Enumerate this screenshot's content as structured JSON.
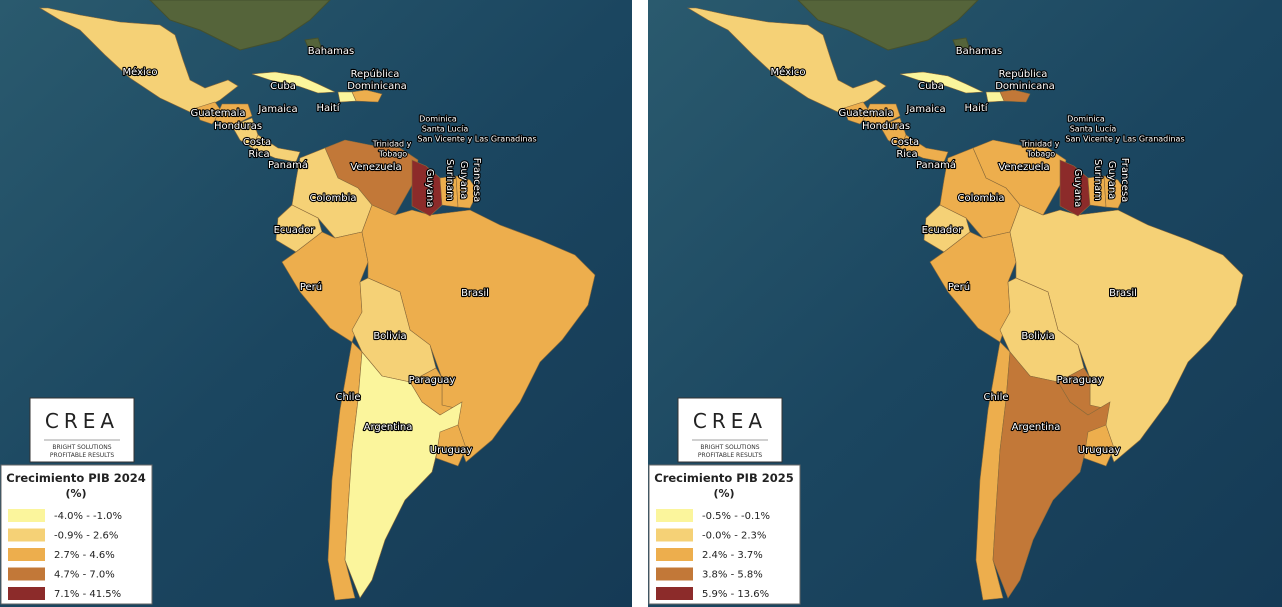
{
  "maps": [
    {
      "legend": {
        "title": "Crecimiento PIB 2024",
        "unit": "(%)",
        "items": [
          {
            "label": "-4.0% - -1.0%",
            "color": "#fbf59c"
          },
          {
            "label": "-0.9% - 2.6%",
            "color": "#f5d176"
          },
          {
            "label": "2.7% - 4.6%",
            "color": "#edae4d"
          },
          {
            "label": "4.7% - 7.0%",
            "color": "#c27838"
          },
          {
            "label": "7.1% - 41.5%",
            "color": "#8c2b2a"
          }
        ]
      },
      "labels": [
        {
          "lines": [
            "México"
          ],
          "fill": "#f5d176"
        },
        {
          "lines": [
            "Bahamas"
          ]
        },
        {
          "lines": [
            "Cuba"
          ],
          "fill": "#fbf59c"
        },
        {
          "lines": [
            "República",
            "Dominicana"
          ],
          "fill": "#edae4d"
        },
        {
          "lines": [
            "Jamaica"
          ]
        },
        {
          "lines": [
            "Haití"
          ],
          "fill": "#fbf59c"
        },
        {
          "lines": [
            "Guatemala"
          ],
          "fill": "#edae4d"
        },
        {
          "lines": [
            "Honduras"
          ],
          "fill": "#edae4d"
        },
        {
          "lines": [
            "Costa",
            "Rica"
          ],
          "fill": "#f5d176"
        },
        {
          "lines": [
            "Panamá"
          ],
          "fill": "#f5d176"
        },
        {
          "lines": [
            "Dominica",
            "Santa Lucía",
            "San Vicente y Las Granadinas"
          ]
        },
        {
          "lines": [
            "Trinidad y",
            "Tobago"
          ]
        },
        {
          "lines": [
            "Venezuela"
          ],
          "fill": "#c27838"
        },
        {
          "lines": [
            "Colombia"
          ],
          "fill": "#f5d176"
        },
        {
          "lines": [
            "Ecuador"
          ],
          "fill": "#f5d176"
        },
        {
          "lines": [
            "Perú"
          ],
          "fill": "#edae4d"
        },
        {
          "lines": [
            "Brasil"
          ],
          "fill": "#edae4d"
        },
        {
          "lines": [
            "Bolivia"
          ],
          "fill": "#f5d176"
        },
        {
          "lines": [
            "Paraguay"
          ],
          "fill": "#edae4d"
        },
        {
          "lines": [
            "Chile"
          ],
          "fill": "#edae4d"
        },
        {
          "lines": [
            "Argentina"
          ],
          "fill": "#fbf59c"
        },
        {
          "lines": [
            "Uruguay"
          ],
          "fill": "#edae4d"
        },
        {
          "lines": [
            "Guyana"
          ],
          "fill": "#8c2b2a"
        },
        {
          "lines": [
            "Surinam"
          ],
          "fill": "#edae4d"
        },
        {
          "lines": [
            "Guyana",
            "Francesa"
          ],
          "fill": "#edae4d"
        }
      ]
    },
    {
      "legend": {
        "title": "Crecimiento PIB 2025",
        "unit": "(%)",
        "items": [
          {
            "label": "-0.5% - -0.1%",
            "color": "#fbf59c"
          },
          {
            "label": "-0.0% - 2.3%",
            "color": "#f5d176"
          },
          {
            "label": "2.4% - 3.7%",
            "color": "#edae4d"
          },
          {
            "label": "3.8% - 5.8%",
            "color": "#c27838"
          },
          {
            "label": "5.9% - 13.6%",
            "color": "#8c2b2a"
          }
        ]
      },
      "labels": [
        {
          "lines": [
            "México"
          ],
          "fill": "#f5d176"
        },
        {
          "lines": [
            "Bahamas"
          ]
        },
        {
          "lines": [
            "Cuba"
          ],
          "fill": "#fbf59c"
        },
        {
          "lines": [
            "República",
            "Dominicana"
          ],
          "fill": "#c27838"
        },
        {
          "lines": [
            "Jamaica"
          ]
        },
        {
          "lines": [
            "Haití"
          ],
          "fill": "#fbf59c"
        },
        {
          "lines": [
            "Guatemala"
          ],
          "fill": "#edae4d"
        },
        {
          "lines": [
            "Honduras"
          ],
          "fill": "#edae4d"
        },
        {
          "lines": [
            "Costa",
            "Rica"
          ],
          "fill": "#edae4d"
        },
        {
          "lines": [
            "Panamá"
          ],
          "fill": "#edae4d"
        },
        {
          "lines": [
            "Dominica",
            "Santa Lucía",
            "San Vicente y Las Granadinas"
          ]
        },
        {
          "lines": [
            "Trinidad y",
            "Tobago"
          ]
        },
        {
          "lines": [
            "Venezuela"
          ],
          "fill": "#edae4d"
        },
        {
          "lines": [
            "Colombia"
          ],
          "fill": "#edae4d"
        },
        {
          "lines": [
            "Ecuador"
          ],
          "fill": "#f5d176"
        },
        {
          "lines": [
            "Perú"
          ],
          "fill": "#edae4d"
        },
        {
          "lines": [
            "Brasil"
          ],
          "fill": "#f5d176"
        },
        {
          "lines": [
            "Bolivia"
          ],
          "fill": "#f5d176"
        },
        {
          "lines": [
            "Paraguay"
          ],
          "fill": "#c27838"
        },
        {
          "lines": [
            "Chile"
          ],
          "fill": "#edae4d"
        },
        {
          "lines": [
            "Argentina"
          ],
          "fill": "#c27838"
        },
        {
          "lines": [
            "Uruguay"
          ],
          "fill": "#edae4d"
        },
        {
          "lines": [
            "Guyana"
          ],
          "fill": "#8c2b2a"
        },
        {
          "lines": [
            "Surinam"
          ],
          "fill": "#edae4d"
        },
        {
          "lines": [
            "Guyana",
            "Francesa"
          ],
          "fill": "#edae4d"
        }
      ]
    }
  ],
  "logo": {
    "name": "CREA",
    "tagline": [
      "BRIGHT SOLUTIONS",
      "PROFITABLE RESULTS"
    ]
  }
}
